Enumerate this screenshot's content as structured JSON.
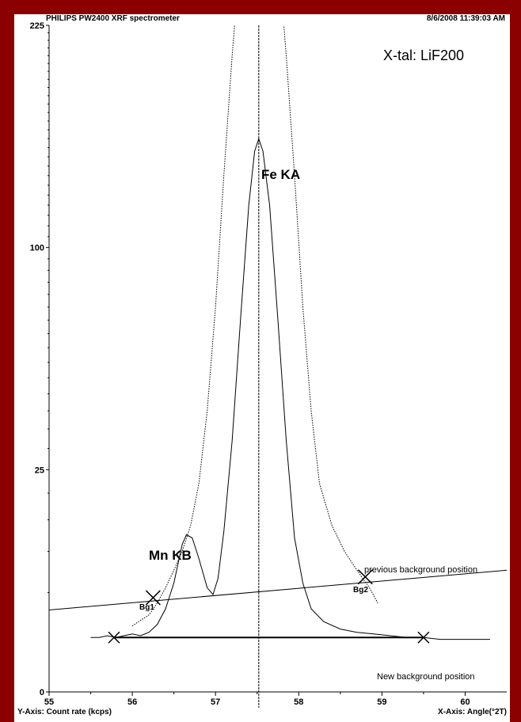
{
  "header": {
    "instrument": "PHILIPS PW2400 XRF spectrometer",
    "timestamp": "8/6/2008 11:39:03 AM"
  },
  "chart_data": {
    "type": "line",
    "y_scale": "sqrt",
    "xlabel": "X-Axis: Angle(°2T)",
    "ylabel": "Y-Axis: Count rate (kcps)",
    "xlim": [
      55,
      60.5
    ],
    "ylim": [
      0,
      225
    ],
    "x_ticks": [
      55,
      56,
      57,
      58,
      59,
      60
    ],
    "y_ticks": [
      0,
      25,
      100,
      225
    ],
    "annotations": {
      "crystal": "X-tal: LiF200",
      "peak_main": "Fe KA",
      "peak_minor": "Mn KB",
      "bg1": "Bg1",
      "bg2": "Bg2",
      "prev_bg": "previous background position",
      "new_bg": "New background position"
    },
    "peak_position": 57.52,
    "series": [
      {
        "style": "solid",
        "points": [
          [
            55.5,
            1.5
          ],
          [
            55.6,
            1.5
          ],
          [
            55.7,
            1.6
          ],
          [
            55.8,
            1.5
          ],
          [
            55.9,
            1.6
          ],
          [
            56.0,
            1.7
          ],
          [
            56.1,
            1.6
          ],
          [
            56.2,
            1.8
          ],
          [
            56.3,
            2.3
          ],
          [
            56.4,
            3.5
          ],
          [
            56.5,
            6.0
          ],
          [
            56.6,
            11.0
          ],
          [
            56.65,
            12.5
          ],
          [
            56.72,
            12.0
          ],
          [
            56.8,
            9.0
          ],
          [
            56.9,
            5.5
          ],
          [
            56.97,
            4.8
          ],
          [
            57.03,
            6.5
          ],
          [
            57.1,
            13.0
          ],
          [
            57.2,
            32.0
          ],
          [
            57.3,
            70.0
          ],
          [
            57.4,
            120.0
          ],
          [
            57.47,
            148.0
          ],
          [
            57.52,
            155.0
          ],
          [
            57.57,
            148.0
          ],
          [
            57.65,
            120.0
          ],
          [
            57.75,
            70.0
          ],
          [
            57.85,
            32.0
          ],
          [
            57.95,
            12.0
          ],
          [
            58.05,
            6.0
          ],
          [
            58.15,
            3.5
          ],
          [
            58.3,
            2.5
          ],
          [
            58.5,
            2.0
          ],
          [
            58.7,
            1.8
          ],
          [
            58.9,
            1.7
          ],
          [
            59.1,
            1.6
          ],
          [
            59.3,
            1.5
          ],
          [
            59.5,
            1.5
          ],
          [
            59.7,
            1.4
          ],
          [
            59.9,
            1.4
          ],
          [
            60.1,
            1.4
          ],
          [
            60.3,
            1.4
          ]
        ]
      },
      {
        "style": "dotted",
        "points": [
          [
            56.0,
            2.2
          ],
          [
            56.1,
            2.6
          ],
          [
            56.2,
            3.0
          ],
          [
            56.3,
            4.0
          ],
          [
            56.4,
            5.5
          ],
          [
            56.5,
            7.5
          ],
          [
            56.6,
            10.0
          ],
          [
            56.7,
            14.0
          ],
          [
            56.8,
            22.0
          ],
          [
            56.9,
            40.0
          ],
          [
            57.0,
            75.0
          ],
          [
            57.1,
            135.0
          ],
          [
            57.2,
            205.0
          ],
          [
            57.25,
            240.0
          ],
          [
            57.8,
            240.0
          ],
          [
            57.85,
            205.0
          ],
          [
            57.95,
            135.0
          ],
          [
            58.05,
            75.0
          ],
          [
            58.15,
            40.0
          ],
          [
            58.25,
            22.0
          ],
          [
            58.4,
            14.0
          ],
          [
            58.55,
            10.0
          ],
          [
            58.7,
            7.5
          ],
          [
            58.85,
            5.5
          ],
          [
            58.95,
            4.0
          ]
        ]
      }
    ],
    "previous_background": {
      "from": [
        55,
        3.4
      ],
      "to": [
        60.5,
        7.5
      ]
    },
    "new_background": {
      "from": [
        55.78,
        1.5
      ],
      "to": [
        59.5,
        1.5
      ]
    },
    "markers": [
      {
        "name": "Bg1",
        "x": 56.25,
        "y": 4.5
      },
      {
        "name": "Bg2",
        "x": 58.8,
        "y": 6.7
      },
      {
        "name": "new-bg-left",
        "x": 55.78,
        "y": 1.5
      },
      {
        "name": "new-bg-right",
        "x": 59.5,
        "y": 1.5
      }
    ]
  }
}
